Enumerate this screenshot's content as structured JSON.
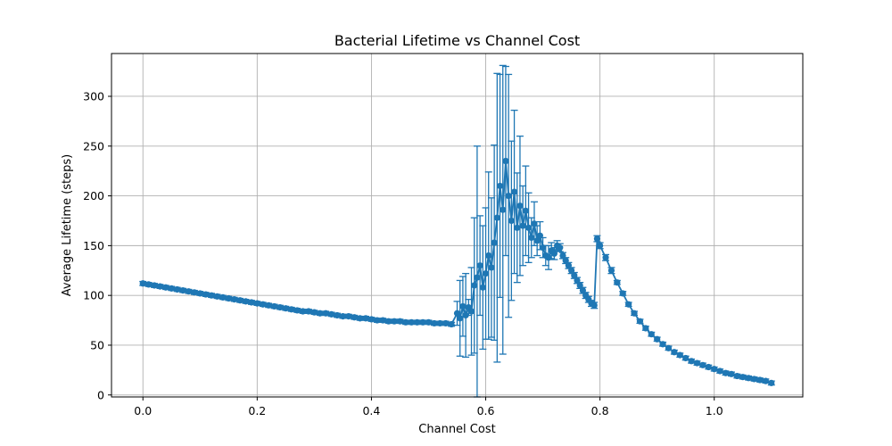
{
  "chart_data": {
    "type": "line",
    "title": "Bacterial Lifetime vs Channel Cost",
    "xlabel": "Channel Cost",
    "ylabel": "Average Lifetime (steps)",
    "xlim": [
      -0.055,
      1.155
    ],
    "ylim": [
      -2,
      343
    ],
    "xticks": [
      0.0,
      0.2,
      0.4,
      0.6,
      0.8,
      1.0
    ],
    "xtick_labels": [
      "0.0",
      "0.2",
      "0.4",
      "0.6",
      "0.8",
      "1.0"
    ],
    "yticks": [
      0,
      50,
      100,
      150,
      200,
      250,
      300
    ],
    "ytick_labels": [
      "0",
      "50",
      "100",
      "150",
      "200",
      "250",
      "300"
    ],
    "grid": true,
    "legend": "none",
    "series": [
      {
        "color": "#1f77b4",
        "marker": "circle",
        "error_bars": true,
        "x": [
          0.0,
          0.01,
          0.02,
          0.03,
          0.04,
          0.05,
          0.06,
          0.07,
          0.08,
          0.09,
          0.1,
          0.11,
          0.12,
          0.13,
          0.14,
          0.15,
          0.16,
          0.17,
          0.18,
          0.19,
          0.2,
          0.21,
          0.22,
          0.23,
          0.24,
          0.25,
          0.26,
          0.27,
          0.28,
          0.29,
          0.3,
          0.31,
          0.32,
          0.33,
          0.34,
          0.35,
          0.36,
          0.37,
          0.38,
          0.39,
          0.4,
          0.41,
          0.42,
          0.43,
          0.44,
          0.45,
          0.46,
          0.47,
          0.48,
          0.49,
          0.5,
          0.51,
          0.52,
          0.53,
          0.54,
          0.55,
          0.555,
          0.56,
          0.565,
          0.57,
          0.575,
          0.58,
          0.585,
          0.59,
          0.595,
          0.6,
          0.605,
          0.61,
          0.615,
          0.62,
          0.625,
          0.63,
          0.635,
          0.64,
          0.645,
          0.65,
          0.655,
          0.66,
          0.665,
          0.67,
          0.675,
          0.68,
          0.685,
          0.69,
          0.695,
          0.7,
          0.705,
          0.71,
          0.715,
          0.72,
          0.725,
          0.73,
          0.735,
          0.74,
          0.745,
          0.75,
          0.755,
          0.76,
          0.765,
          0.77,
          0.775,
          0.78,
          0.785,
          0.79,
          0.795,
          0.8,
          0.81,
          0.82,
          0.83,
          0.84,
          0.85,
          0.86,
          0.87,
          0.88,
          0.89,
          0.9,
          0.91,
          0.92,
          0.93,
          0.94,
          0.95,
          0.96,
          0.97,
          0.98,
          0.99,
          1.0,
          1.01,
          1.02,
          1.03,
          1.04,
          1.05,
          1.06,
          1.07,
          1.08,
          1.09,
          1.1
        ],
        "y": [
          112,
          111,
          110,
          109,
          108,
          107,
          106,
          105,
          104,
          103,
          102,
          101,
          100,
          99,
          98,
          97,
          96,
          95,
          94,
          93,
          92,
          91,
          90,
          89,
          88,
          87,
          86,
          85,
          84,
          84,
          83,
          82,
          82,
          81,
          80,
          79,
          79,
          78,
          77,
          77,
          76,
          75,
          75,
          74,
          74,
          74,
          73,
          73,
          73,
          73,
          73,
          72,
          72,
          72,
          71,
          82,
          77,
          89,
          80,
          88,
          84,
          110,
          118,
          130,
          108,
          122,
          140,
          128,
          153,
          178,
          210,
          186,
          235,
          200,
          175,
          204,
          168,
          190,
          170,
          185,
          168,
          158,
          172,
          155,
          160,
          148,
          140,
          138,
          145,
          142,
          150,
          148,
          140,
          135,
          130,
          125,
          120,
          115,
          110,
          105,
          100,
          96,
          92,
          90,
          157,
          150,
          138,
          125,
          113,
          102,
          91,
          82,
          74,
          67,
          61,
          56,
          51,
          47,
          43,
          40,
          37,
          34,
          32,
          30,
          28,
          26,
          24,
          22,
          21,
          19,
          18,
          17,
          16,
          15,
          14,
          12
        ],
        "yerr": [
          2,
          2,
          2,
          2,
          2,
          2,
          2,
          2,
          2,
          2,
          2,
          2,
          2,
          2,
          2,
          2,
          2,
          2,
          2,
          2,
          2,
          2,
          2,
          2,
          2,
          2,
          2,
          2,
          2,
          2,
          2,
          2,
          2,
          2,
          2,
          2,
          2,
          2,
          2,
          2,
          2,
          2,
          2,
          2,
          2,
          2,
          2,
          2,
          2,
          2,
          2,
          2,
          2,
          2,
          2,
          12,
          38,
          30,
          42,
          8,
          44,
          68,
          132,
          50,
          62,
          66,
          84,
          70,
          98,
          145,
          112,
          145,
          95,
          122,
          80,
          82,
          55,
          70,
          40,
          45,
          35,
          20,
          22,
          15,
          14,
          10,
          10,
          12,
          8,
          6,
          5,
          4,
          3,
          3,
          3,
          3,
          3,
          3,
          3,
          3,
          3,
          3,
          3,
          3,
          3,
          3,
          3,
          3,
          2,
          2,
          2,
          2,
          2,
          2,
          2,
          2,
          2,
          2,
          2,
          2,
          2,
          2,
          2,
          2,
          2,
          2,
          2,
          2,
          2,
          2,
          2,
          2,
          2,
          2,
          2,
          2
        ]
      }
    ]
  }
}
